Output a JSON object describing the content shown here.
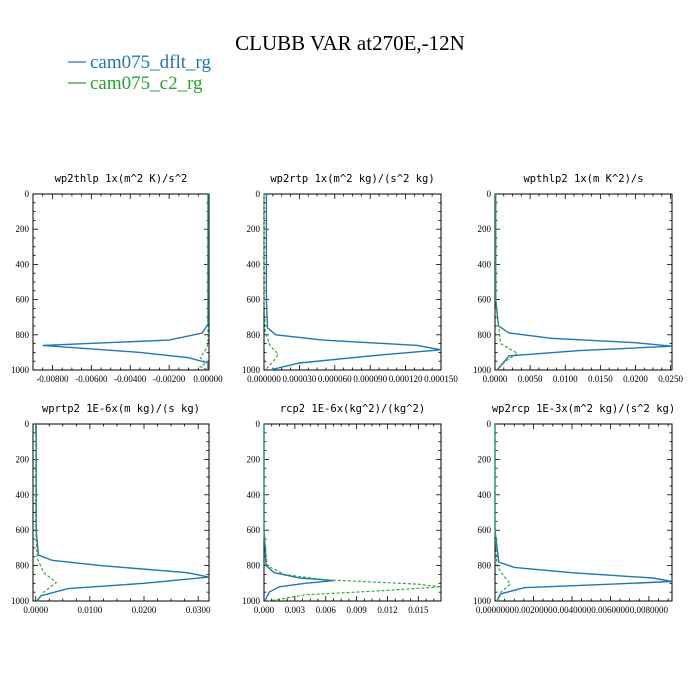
{
  "title": "CLUBB VAR at270E,-12N",
  "legend": [
    {
      "name": "cam075_dflt_rg",
      "color": "#1f77b4"
    },
    {
      "name": "cam075_c2_rg",
      "color": "#2ca02c"
    }
  ],
  "chart_data": [
    {
      "type": "line",
      "title": "wp2thlp  1x(m^2 K)/s^2",
      "xlim": [
        -0.009,
        5e-05
      ],
      "ylim": [
        1000,
        0
      ],
      "xticks": [
        -0.008,
        -0.006,
        -0.004,
        -0.002,
        0.0
      ],
      "xtick_labels": [
        "-0.00800",
        "-0.00600",
        "-0.00400",
        "-0.00200",
        "0.00000"
      ],
      "yticks": [
        0,
        200,
        400,
        600,
        800,
        1000
      ],
      "series": [
        {
          "name": "cam075_dflt_rg",
          "color": "#1f77b4",
          "dashed": false,
          "x": [
            0,
            0,
            0,
            -0.0003,
            -0.002,
            -0.0085,
            -0.0035,
            -0.001,
            0,
            0
          ],
          "y": [
            0,
            600,
            740,
            790,
            830,
            860,
            900,
            930,
            960,
            1000
          ]
        },
        {
          "name": "cam075_c2_rg",
          "color": "#2ca02c",
          "dashed": true,
          "x": [
            0,
            0,
            0,
            -0.0001,
            -0.0004,
            -0.0001,
            -0.0004,
            0
          ],
          "y": [
            0,
            600,
            850,
            880,
            930,
            960,
            980,
            1000
          ]
        }
      ]
    },
    {
      "type": "line",
      "title": "wp2rtp  1x(m^2 kg)/(s^2 kg)",
      "xlim": [
        0,
        0.00015
      ],
      "ylim": [
        1000,
        0
      ],
      "xticks": [
        0,
        3e-05,
        6e-05,
        9e-05,
        0.00012,
        0.00015
      ],
      "xtick_labels": [
        "0.000000",
        "0.000030",
        "0.000060",
        "0.000090",
        "0.000120",
        "0.000150"
      ],
      "yticks": [
        0,
        200,
        400,
        600,
        800,
        1000
      ],
      "series": [
        {
          "name": "cam075_dflt_rg",
          "color": "#1f77b4",
          "dashed": false,
          "x": [
            2e-06,
            2e-06,
            3e-06,
            1e-05,
            5e-05,
            0.00013,
            0.000155,
            9e-05,
            3e-05,
            5e-06
          ],
          "y": [
            0,
            600,
            760,
            800,
            830,
            860,
            885,
            920,
            960,
            1000
          ]
        },
        {
          "name": "cam075_c2_rg",
          "color": "#2ca02c",
          "dashed": true,
          "x": [
            0,
            0,
            1e-06,
            5e-06,
            1.2e-05,
            8e-06,
            1e-06
          ],
          "y": [
            0,
            600,
            780,
            860,
            910,
            950,
            1000
          ]
        }
      ]
    },
    {
      "type": "line",
      "title": "wpthlp2  1x(m K^2)/s",
      "xlim": [
        0,
        0.0252
      ],
      "ylim": [
        1000,
        0
      ],
      "xticks": [
        0,
        0.005,
        0.01,
        0.015,
        0.02,
        0.025
      ],
      "xtick_labels": [
        "0.0000",
        "0.0050",
        "0.0100",
        "0.0150",
        "0.0200",
        "0.0250"
      ],
      "yticks": [
        0,
        200,
        400,
        600,
        800,
        1000
      ],
      "series": [
        {
          "name": "cam075_dflt_rg",
          "color": "#1f77b4",
          "dashed": false,
          "x": [
            0.0001,
            0.0001,
            0.0005,
            0.002,
            0.008,
            0.02,
            0.0255,
            0.012,
            0.002,
            0.0003
          ],
          "y": [
            0,
            600,
            750,
            790,
            820,
            845,
            865,
            890,
            920,
            1000
          ]
        },
        {
          "name": "cam075_c2_rg",
          "color": "#2ca02c",
          "dashed": true,
          "x": [
            0.0001,
            0.0001,
            0.0008,
            0.0032,
            0.0015,
            0.0003
          ],
          "y": [
            0,
            600,
            850,
            905,
            950,
            1000
          ]
        }
      ]
    },
    {
      "type": "line",
      "title": "wprtp2  1E-6x(m kg)/(s kg)",
      "xlim": [
        -0.0005,
        0.032
      ],
      "ylim": [
        1000,
        0
      ],
      "xticks": [
        0,
        0.01,
        0.02,
        0.03
      ],
      "xtick_labels": [
        "0.0000",
        "0.0100",
        "0.0200",
        "0.0300"
      ],
      "yticks": [
        0,
        200,
        400,
        600,
        800,
        1000
      ],
      "series": [
        {
          "name": "cam075_dflt_rg",
          "color": "#1f77b4",
          "dashed": false,
          "x": [
            0.0001,
            0.0001,
            0.0005,
            0.003,
            0.012,
            0.028,
            0.032,
            0.02,
            0.006,
            0.001,
            0.0002
          ],
          "y": [
            0,
            600,
            740,
            770,
            800,
            840,
            865,
            900,
            930,
            970,
            1000
          ]
        },
        {
          "name": "cam075_c2_rg",
          "color": "#2ca02c",
          "dashed": true,
          "x": [
            0,
            0,
            0.0003,
            0.0015,
            0.0038,
            0.0015,
            0.0003
          ],
          "y": [
            0,
            600,
            760,
            840,
            895,
            950,
            1000
          ]
        }
      ]
    },
    {
      "type": "line",
      "title": "rcp2  1E-6x(kg^2)/(kg^2)",
      "xlim": [
        0,
        0.0172
      ],
      "ylim": [
        1000,
        0
      ],
      "xticks": [
        0,
        0.003,
        0.006,
        0.009,
        0.012,
        0.015
      ],
      "xtick_labels": [
        "0.000",
        "0.003",
        "0.006",
        "0.009",
        "0.012",
        "0.015"
      ],
      "yticks": [
        0,
        200,
        400,
        600,
        800,
        1000
      ],
      "series": [
        {
          "name": "cam075_dflt_rg",
          "color": "#1f77b4",
          "dashed": false,
          "x": [
            0,
            0,
            0.0002,
            0.001,
            0.0035,
            0.0068,
            0.004,
            0.0015,
            0.0005,
            0.0001
          ],
          "y": [
            0,
            600,
            800,
            840,
            870,
            885,
            900,
            920,
            950,
            1000
          ]
        },
        {
          "name": "cam075_c2_rg",
          "color": "#2ca02c",
          "dashed": true,
          "x": [
            0,
            0,
            0.0003,
            0.002,
            0.006,
            0.0095,
            0.015,
            0.0172,
            0.012,
            0.004,
            0.0005
          ],
          "y": [
            0,
            600,
            800,
            850,
            880,
            890,
            905,
            920,
            940,
            965,
            1000
          ]
        }
      ]
    },
    {
      "type": "line",
      "title": "wp2rcp  1E-3x(m^2 kg)/(s^2 kg)",
      "xlim": [
        0,
        0.0092
      ],
      "ylim": [
        1000,
        0
      ],
      "xticks": [
        0,
        0.002,
        0.004,
        0.006,
        0.008
      ],
      "xtick_labels": [
        "0.0000000",
        "0.0020000",
        "0.0040000",
        "0.0060000",
        "0.0080000"
      ],
      "yticks": [
        0,
        200,
        400,
        600,
        800,
        1000
      ],
      "series": [
        {
          "name": "cam075_dflt_rg",
          "color": "#1f77b4",
          "dashed": false,
          "x": [
            0,
            0,
            0.0002,
            0.001,
            0.004,
            0.0082,
            0.0092,
            0.006,
            0.0015,
            0.0003,
            0.0001
          ],
          "y": [
            0,
            600,
            780,
            810,
            840,
            870,
            890,
            905,
            925,
            960,
            1000
          ]
        },
        {
          "name": "cam075_c2_rg",
          "color": "#2ca02c",
          "dashed": true,
          "x": [
            0,
            0,
            0.0001,
            0.0004,
            0.0008,
            0.0003,
            0.0001
          ],
          "y": [
            0,
            600,
            800,
            850,
            905,
            950,
            1000
          ]
        }
      ]
    }
  ]
}
